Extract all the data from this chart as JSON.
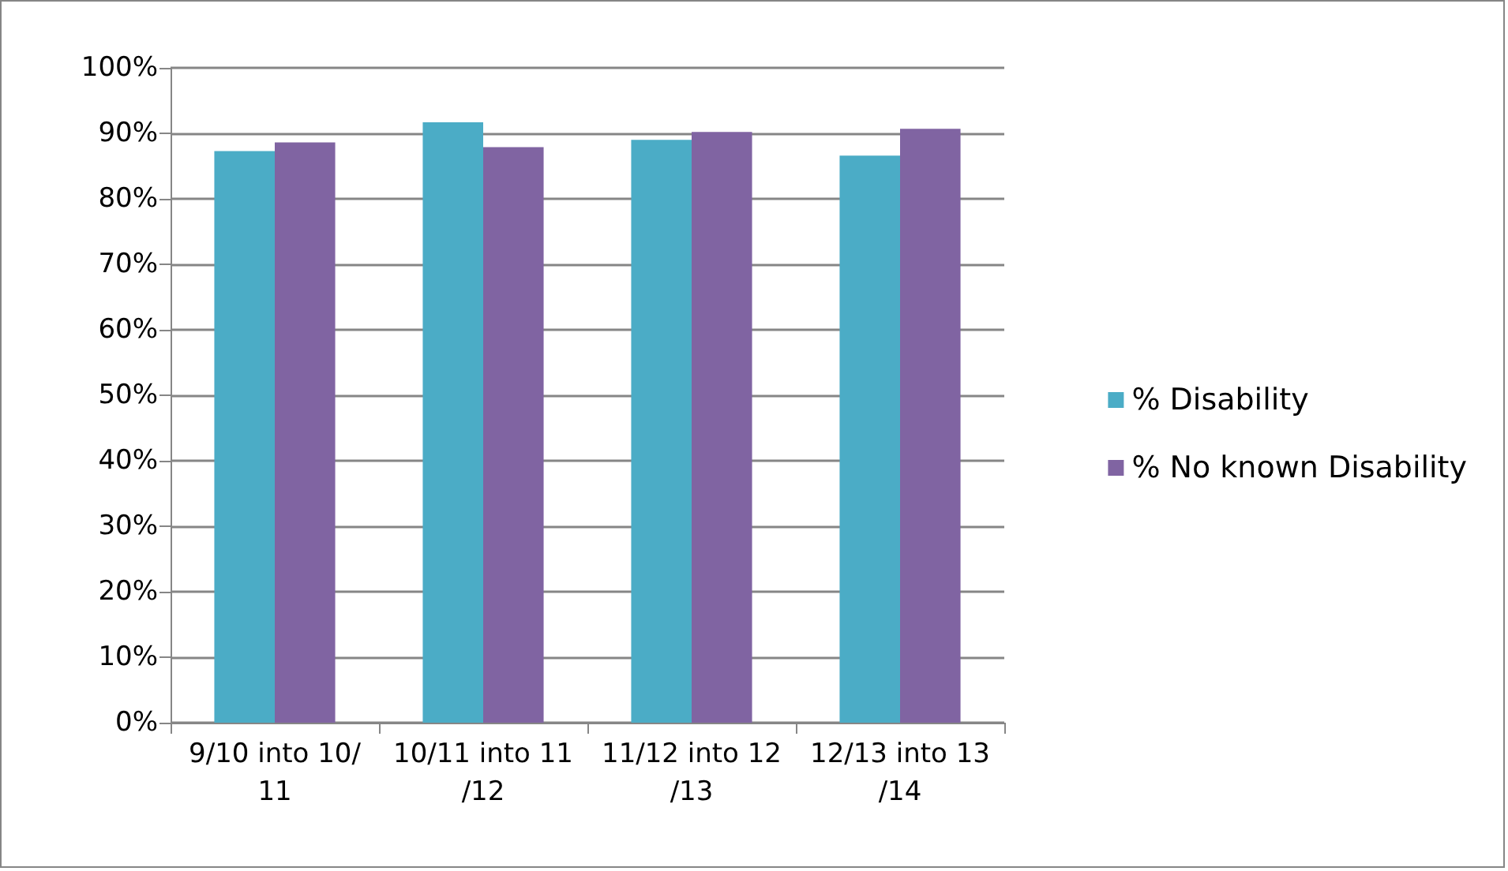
{
  "chart_data": {
    "type": "bar",
    "categories": [
      "9/10 into 10/11",
      "10/11 into 11/12",
      "11/12 into 12/13",
      "12/13 into 13/14"
    ],
    "series": [
      {
        "name": "% Disability",
        "color": "#4bacc6",
        "values": [
          87.3,
          91.7,
          89.0,
          86.6
        ]
      },
      {
        "name": "% No known Disability",
        "color": "#8064a2",
        "values": [
          88.6,
          87.9,
          90.2,
          90.7
        ]
      }
    ],
    "ylim": [
      0,
      100
    ],
    "yticks": [
      {
        "value": 0,
        "label": "0%"
      },
      {
        "value": 10,
        "label": "10%"
      },
      {
        "value": 20,
        "label": "20%"
      },
      {
        "value": 30,
        "label": "30%"
      },
      {
        "value": 40,
        "label": "40%"
      },
      {
        "value": 50,
        "label": "50%"
      },
      {
        "value": 60,
        "label": "60%"
      },
      {
        "value": 70,
        "label": "70%"
      },
      {
        "value": 80,
        "label": "80%"
      },
      {
        "value": 90,
        "label": "90%"
      },
      {
        "value": 100,
        "label": "100%"
      }
    ],
    "grid": true,
    "legend": "right"
  }
}
